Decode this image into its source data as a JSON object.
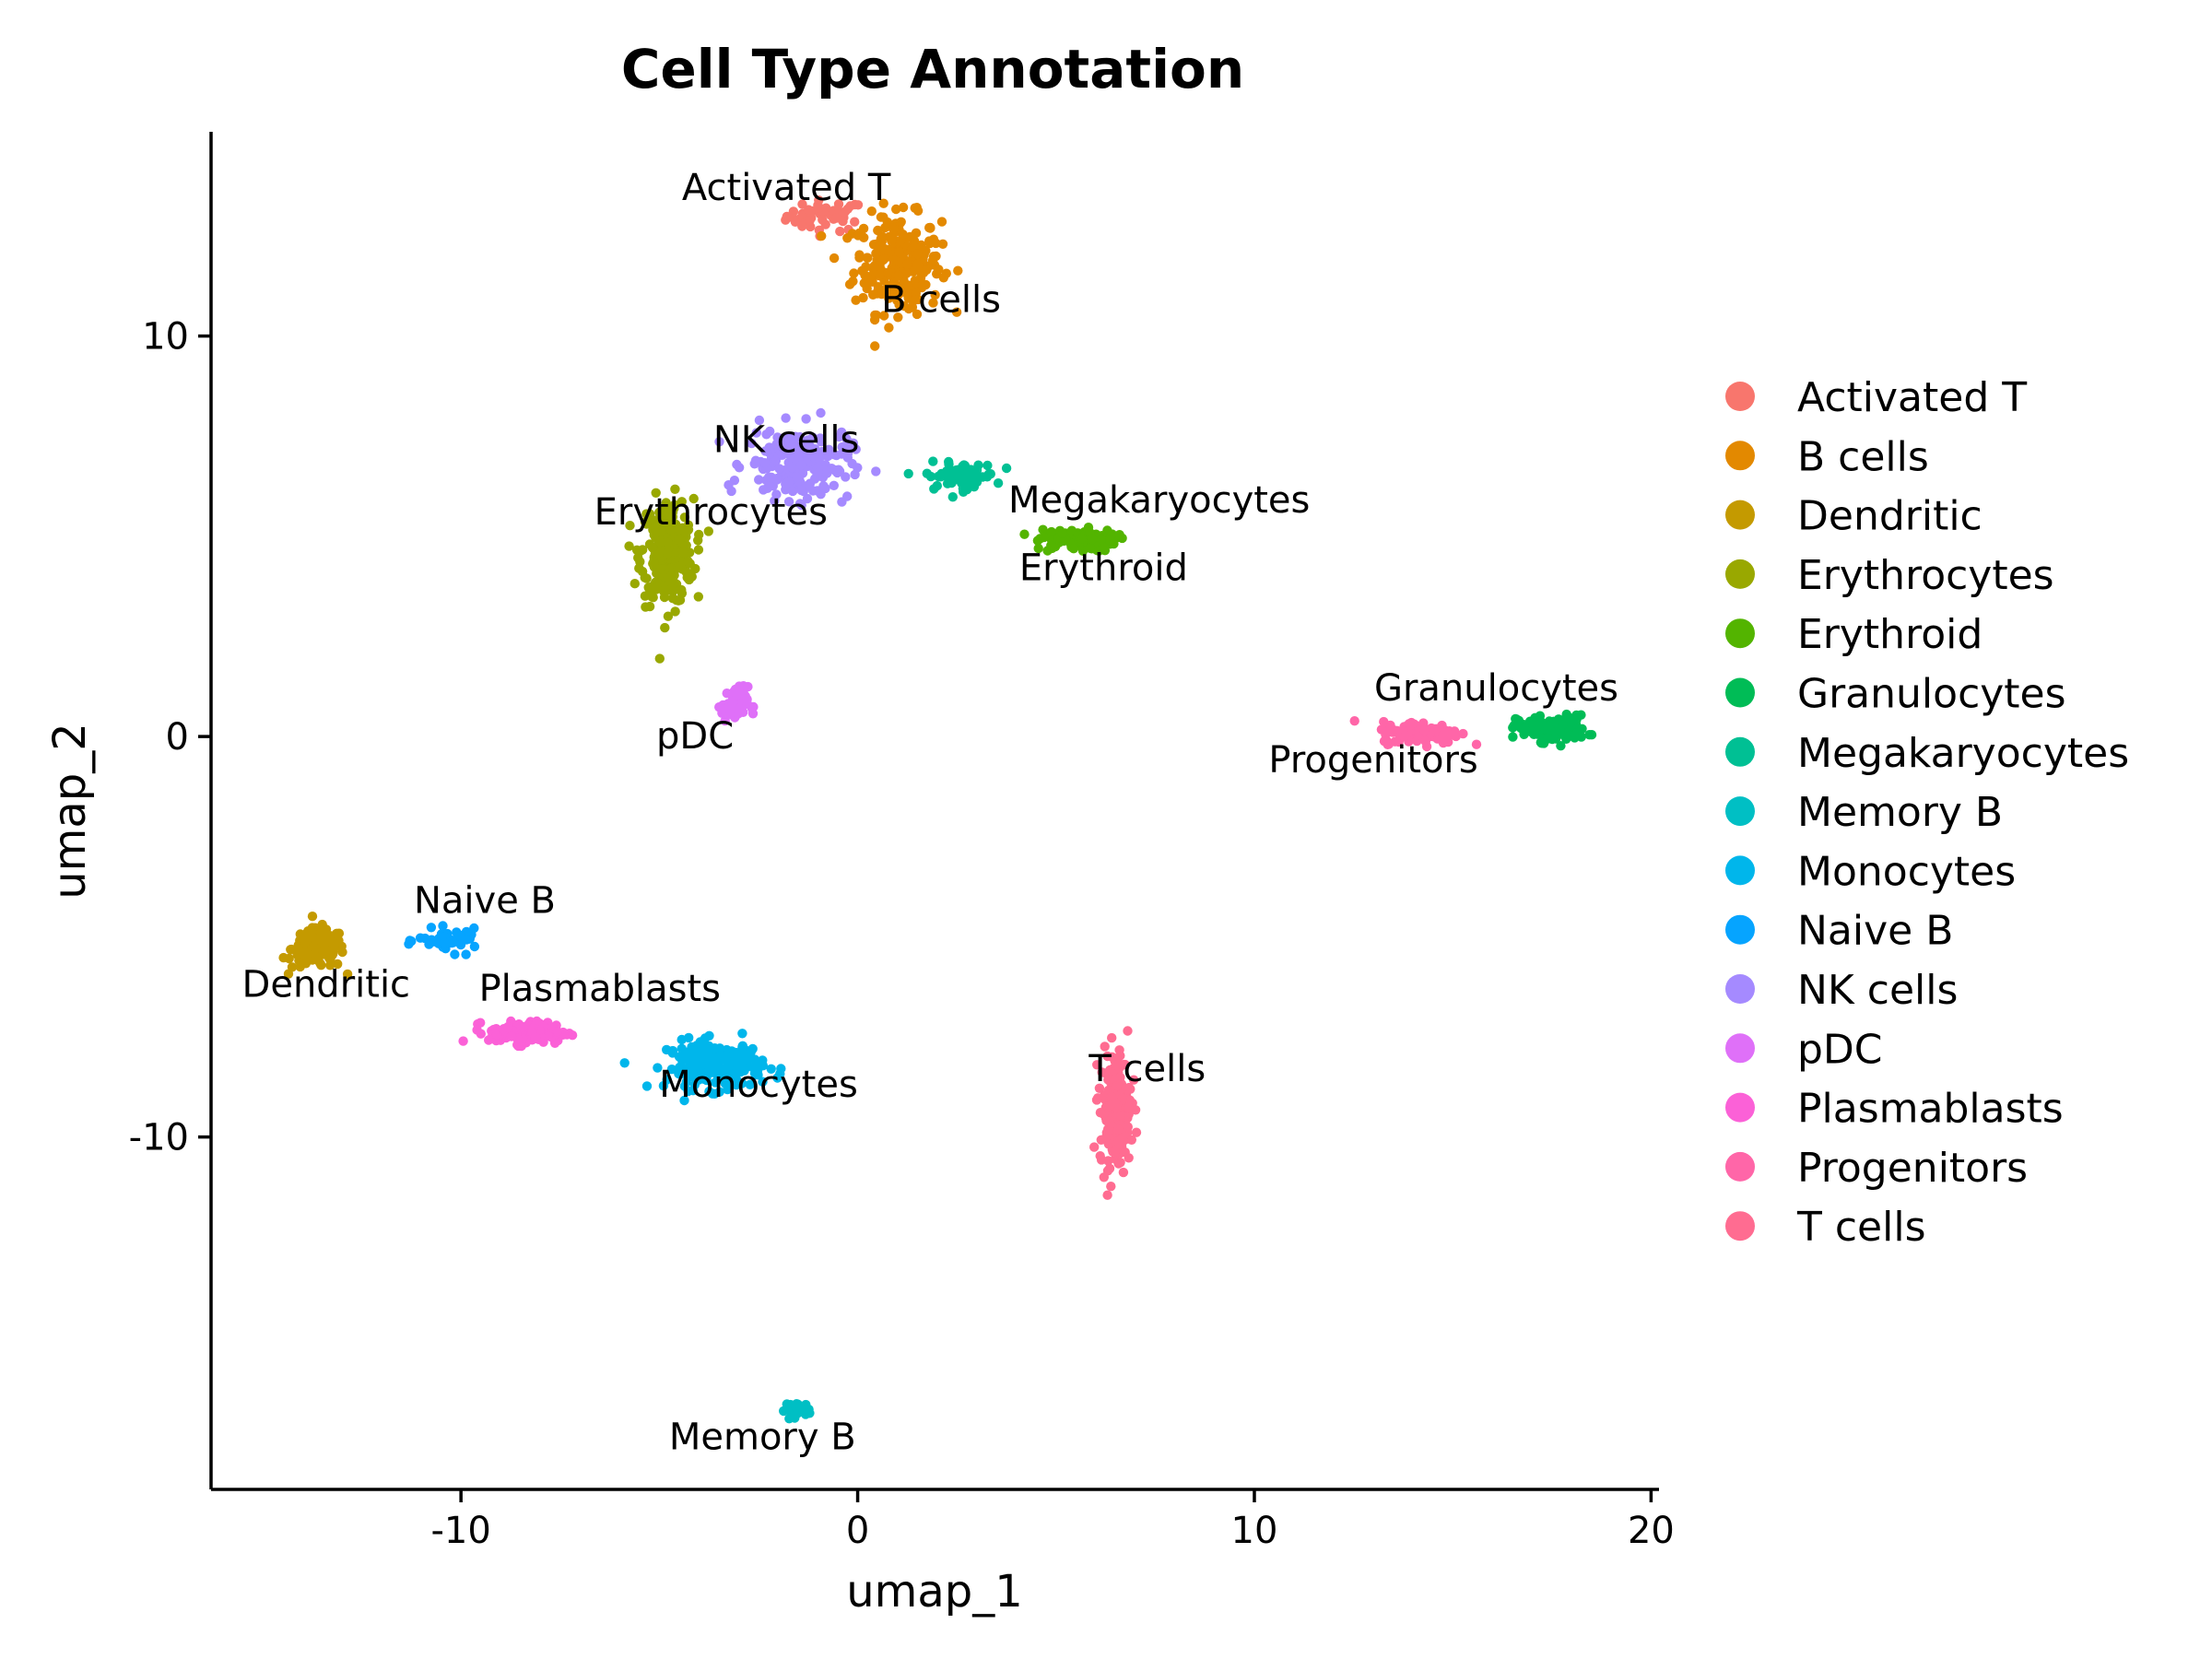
{
  "chart_data": {
    "type": "scatter",
    "title": "Cell Type Annotation",
    "xlabel": "umap_1",
    "ylabel": "umap_2",
    "xlim": [
      -16.3,
      20.2
    ],
    "ylim": [
      -18.8,
      15.1
    ],
    "xticks": [
      -10,
      0,
      10,
      20
    ],
    "yticks": [
      -10,
      0,
      10
    ],
    "xtick_labels": [
      "-10",
      "0",
      "10",
      "20"
    ],
    "ytick_labels": [
      "-10",
      "0",
      "10"
    ],
    "legend": "right",
    "grid": false,
    "clusters": [
      {
        "name": "Activated T",
        "color": "#F8766D",
        "center": [
          -0.8,
          13.0
        ],
        "spread": [
          0.9,
          0.35
        ],
        "n": 50,
        "label": "Activated T",
        "label_pos": [
          -1.8,
          13.4
        ]
      },
      {
        "name": "B cells",
        "color": "#E38900",
        "center": [
          1.0,
          11.8
        ],
        "spread": [
          1.0,
          1.1
        ],
        "n": 260,
        "label": "B cells",
        "label_pos": [
          2.1,
          10.6
        ]
      },
      {
        "name": "Dendritic",
        "color": "#C49A00",
        "center": [
          -13.6,
          -5.3
        ],
        "spread": [
          0.6,
          0.45
        ],
        "n": 140,
        "label": "Dendritic",
        "label_pos": [
          -13.4,
          -6.5
        ]
      },
      {
        "name": "Erythrocytes",
        "color": "#99A800",
        "center": [
          -4.8,
          4.6
        ],
        "spread": [
          0.6,
          1.2
        ],
        "n": 260,
        "label": "Erythrocytes",
        "label_pos": [
          -3.7,
          5.3
        ]
      },
      {
        "name": "Erythroid",
        "color": "#53B400",
        "center": [
          5.5,
          4.9
        ],
        "spread": [
          0.9,
          0.25
        ],
        "n": 110,
        "label": "Erythroid",
        "label_pos": [
          6.2,
          3.9
        ]
      },
      {
        "name": "Granulocytes",
        "color": "#00BC56",
        "center": [
          17.5,
          0.2
        ],
        "spread": [
          0.8,
          0.3
        ],
        "n": 130,
        "label": "Granulocytes",
        "label_pos": [
          16.1,
          0.9
        ]
      },
      {
        "name": "Megakaryocytes",
        "color": "#00C094",
        "center": [
          2.6,
          6.5
        ],
        "spread": [
          0.8,
          0.3
        ],
        "n": 70,
        "label": "Megakaryocytes",
        "label_pos": [
          7.6,
          5.6
        ]
      },
      {
        "name": "Memory B",
        "color": "#00BFC4",
        "center": [
          -1.5,
          -16.8
        ],
        "spread": [
          0.3,
          0.15
        ],
        "n": 35,
        "label": "Memory B",
        "label_pos": [
          -2.4,
          -17.8
        ]
      },
      {
        "name": "Monocytes",
        "color": "#00B6EB",
        "center": [
          -3.6,
          -8.2
        ],
        "spread": [
          1.1,
          0.55
        ],
        "n": 190,
        "label": "Monocytes",
        "label_pos": [
          -2.5,
          -9.0
        ]
      },
      {
        "name": "Naive B",
        "color": "#06A4FF",
        "center": [
          -10.3,
          -5.1
        ],
        "spread": [
          0.7,
          0.25
        ],
        "n": 45,
        "label": "Naive B",
        "label_pos": [
          -9.4,
          -4.4
        ]
      },
      {
        "name": "NK cells",
        "color": "#A58AFF",
        "center": [
          -1.5,
          6.8
        ],
        "spread": [
          1.2,
          0.8
        ],
        "n": 210,
        "label": "NK cells",
        "label_pos": [
          -1.8,
          7.1
        ]
      },
      {
        "name": "pDC",
        "color": "#DF70F8",
        "center": [
          -3.1,
          0.8
        ],
        "spread": [
          0.3,
          0.4
        ],
        "n": 60,
        "label": "pDC",
        "label_pos": [
          -4.1,
          -0.3
        ]
      },
      {
        "name": "Plasmablasts",
        "color": "#FB61D7",
        "center": [
          -8.3,
          -7.4
        ],
        "spread": [
          0.9,
          0.25
        ],
        "n": 140,
        "label": "Plasmablasts",
        "label_pos": [
          -6.5,
          -6.6
        ]
      },
      {
        "name": "Progenitors",
        "color": "#FF66A8",
        "center": [
          14.2,
          0.1
        ],
        "spread": [
          0.9,
          0.25
        ],
        "n": 140,
        "label": "Progenitors",
        "label_pos": [
          13.0,
          -0.9
        ]
      },
      {
        "name": "T cells",
        "color": "#FF6C91",
        "center": [
          6.5,
          -9.3
        ],
        "spread": [
          0.35,
          1.3
        ],
        "n": 220,
        "label": "T cells",
        "label_pos": [
          7.3,
          -8.6
        ]
      }
    ]
  }
}
